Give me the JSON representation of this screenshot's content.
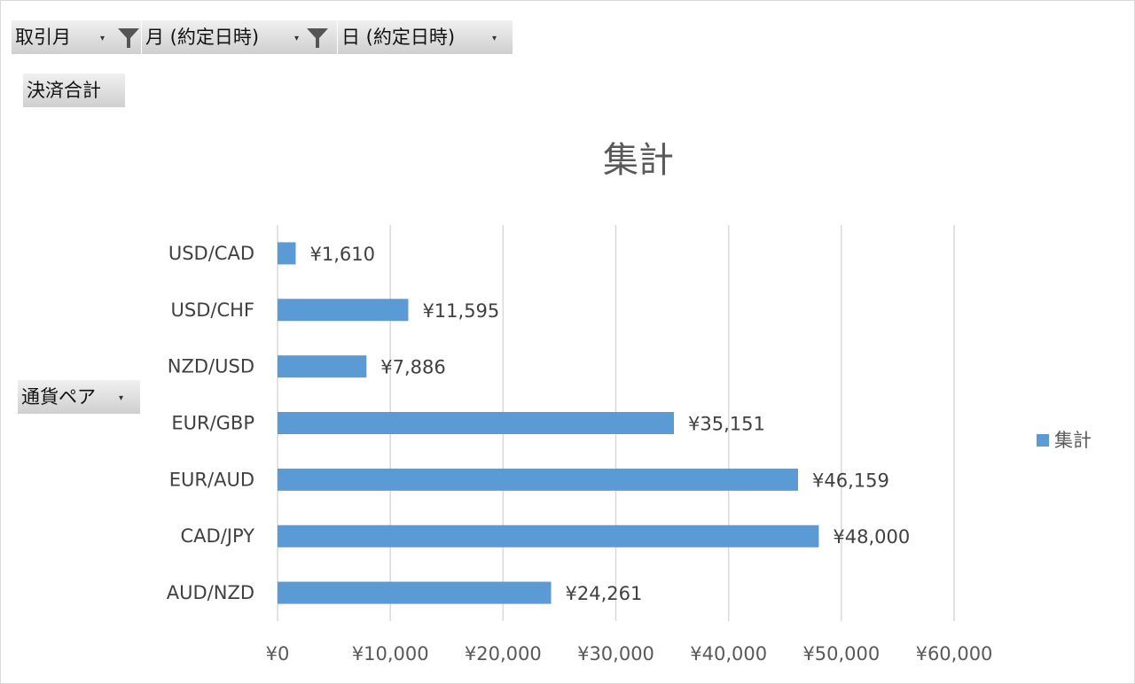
{
  "filters": {
    "month_field": "取引月",
    "contract_month_field": "月 (約定日時)",
    "contract_day_field": "日 (約定日時)"
  },
  "values_button": "決済合計",
  "row_field": "通貨ペア",
  "dropdown_glyph": "▾",
  "colors": {
    "bar": "#5b9bd5",
    "grid": "#d9d9d9"
  },
  "chart_data": {
    "type": "bar",
    "orientation": "horizontal",
    "title": "集計",
    "categories": [
      "USD/CAD",
      "USD/CHF",
      "NZD/USD",
      "EUR/GBP",
      "EUR/AUD",
      "CAD/JPY",
      "AUD/NZD"
    ],
    "series": [
      {
        "name": "集計",
        "values": [
          1610,
          11595,
          7886,
          35151,
          46159,
          48000,
          24261
        ]
      }
    ],
    "data_labels": [
      "¥1,610",
      "¥11,595",
      "¥7,886",
      "¥35,151",
      "¥46,159",
      "¥48,000",
      "¥24,261"
    ],
    "xlim": [
      0,
      60000
    ],
    "x_ticks": [
      0,
      10000,
      20000,
      30000,
      40000,
      50000,
      60000
    ],
    "x_tick_labels": [
      "¥0",
      "¥10,000",
      "¥20,000",
      "¥30,000",
      "¥40,000",
      "¥50,000",
      "¥60,000"
    ],
    "grid": true,
    "legend": "right"
  }
}
